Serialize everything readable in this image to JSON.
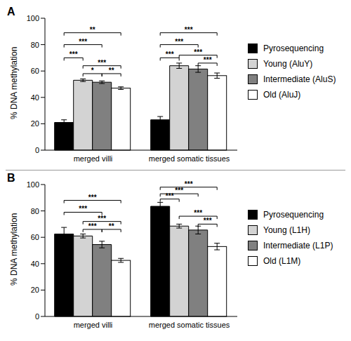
{
  "chart_data": [
    {
      "type": "bar",
      "title": "A",
      "ylabel": "% DNA methylation",
      "categories": [
        "merged villi",
        "merged somatic tissues"
      ],
      "ylim": [
        0,
        100
      ],
      "yticks": [
        0,
        20,
        40,
        60,
        80,
        100
      ],
      "series": [
        {
          "name": "Pyrosequencing",
          "color": "#000000",
          "values": [
            21,
            23
          ],
          "errors": [
            2,
            2.5
          ]
        },
        {
          "name": "Young (AluY)",
          "color": "#d3d3d3",
          "values": [
            53,
            64
          ],
          "errors": [
            1,
            2
          ]
        },
        {
          "name": "Intermediate (AluS)",
          "color": "#808080",
          "values": [
            51.5,
            61.5
          ],
          "errors": [
            1,
            2.5
          ]
        },
        {
          "name": "Old (AluJ)",
          "color": "#ffffff",
          "values": [
            47,
            56.5
          ],
          "errors": [
            1,
            2
          ]
        }
      ],
      "significance": [
        {
          "category": "merged villi",
          "from": "Pyrosequencing",
          "to": "Old (AluJ)",
          "y": 89,
          "label": "**"
        },
        {
          "category": "merged villi",
          "from": "Pyrosequencing",
          "to": "Intermediate (AluS)",
          "y": 80,
          "label": "***"
        },
        {
          "category": "merged villi",
          "from": "Pyrosequencing",
          "to": "Young (AluY)",
          "y": 70,
          "label": "***"
        },
        {
          "category": "merged villi",
          "from": "Young (AluY)",
          "to": "Old (AluJ)",
          "y": 64,
          "label": "***"
        },
        {
          "category": "merged villi",
          "from": "Young (AluY)",
          "to": "Intermediate (AluS)",
          "y": 58,
          "label": "*"
        },
        {
          "category": "merged villi",
          "from": "Intermediate (AluS)",
          "to": "Old (AluJ)",
          "y": 58,
          "label": "**"
        },
        {
          "category": "merged somatic tissues",
          "from": "Pyrosequencing",
          "to": "Old (AluJ)",
          "y": 89,
          "label": "***"
        },
        {
          "category": "merged somatic tissues",
          "from": "Pyrosequencing",
          "to": "Intermediate (AluS)",
          "y": 80,
          "label": "***"
        },
        {
          "category": "merged somatic tissues",
          "from": "Pyrosequencing",
          "to": "Young (AluY)",
          "y": 70,
          "label": "***"
        },
        {
          "category": "merged somatic tissues",
          "from": "Young (AluY)",
          "to": "Old (AluJ)",
          "y": 72,
          "label": "***"
        },
        {
          "category": "merged somatic tissues",
          "from": "Intermediate (AluS)",
          "to": "Old (AluJ)",
          "y": 66,
          "label": "***"
        }
      ]
    },
    {
      "type": "bar",
      "title": "B",
      "ylabel": "% DNA methylation",
      "categories": [
        "merged villi",
        "merged somatic tissues"
      ],
      "ylim": [
        0,
        100
      ],
      "yticks": [
        0,
        20,
        40,
        60,
        80,
        100
      ],
      "series": [
        {
          "name": "Pyrosequencing",
          "color": "#000000",
          "values": [
            62.5,
            83.5
          ],
          "errors": [
            5,
            3
          ]
        },
        {
          "name": "Young (L1H)",
          "color": "#d3d3d3",
          "values": [
            61,
            68.5
          ],
          "errors": [
            1.5,
            1.5
          ]
        },
        {
          "name": "Intermediate (L1P)",
          "color": "#808080",
          "values": [
            54.5,
            65.5
          ],
          "errors": [
            2.5,
            3
          ]
        },
        {
          "name": "Old (L1M)",
          "color": "#ffffff",
          "values": [
            42.5,
            53
          ],
          "errors": [
            1.5,
            2.5
          ]
        }
      ],
      "significance": [
        {
          "category": "merged villi",
          "from": "Pyrosequencing",
          "to": "Old (L1M)",
          "y": 88,
          "label": "***"
        },
        {
          "category": "merged villi",
          "from": "Pyrosequencing",
          "to": "Intermediate (L1P)",
          "y": 79,
          "label": "***"
        },
        {
          "category": "merged villi",
          "from": "Young (L1H)",
          "to": "Old (L1M)",
          "y": 72,
          "label": "***"
        },
        {
          "category": "merged villi",
          "from": "Young (L1H)",
          "to": "Intermediate (L1P)",
          "y": 66,
          "label": "***"
        },
        {
          "category": "merged villi",
          "from": "Intermediate (L1P)",
          "to": "Old (L1M)",
          "y": 66,
          "label": "**"
        },
        {
          "category": "merged somatic tissues",
          "from": "Pyrosequencing",
          "to": "Old (L1M)",
          "y": 98,
          "label": "***"
        },
        {
          "category": "merged somatic tissues",
          "from": "Pyrosequencing",
          "to": "Intermediate (L1P)",
          "y": 93,
          "label": "***"
        },
        {
          "category": "merged somatic tissues",
          "from": "Pyrosequencing",
          "to": "Young (L1H)",
          "y": 89,
          "label": "***"
        },
        {
          "category": "merged somatic tissues",
          "from": "Young (L1H)",
          "to": "Old (L1M)",
          "y": 76,
          "label": "***"
        },
        {
          "category": "merged somatic tissues",
          "from": "Intermediate (L1P)",
          "to": "Old (L1M)",
          "y": 70,
          "label": "***"
        }
      ]
    }
  ]
}
